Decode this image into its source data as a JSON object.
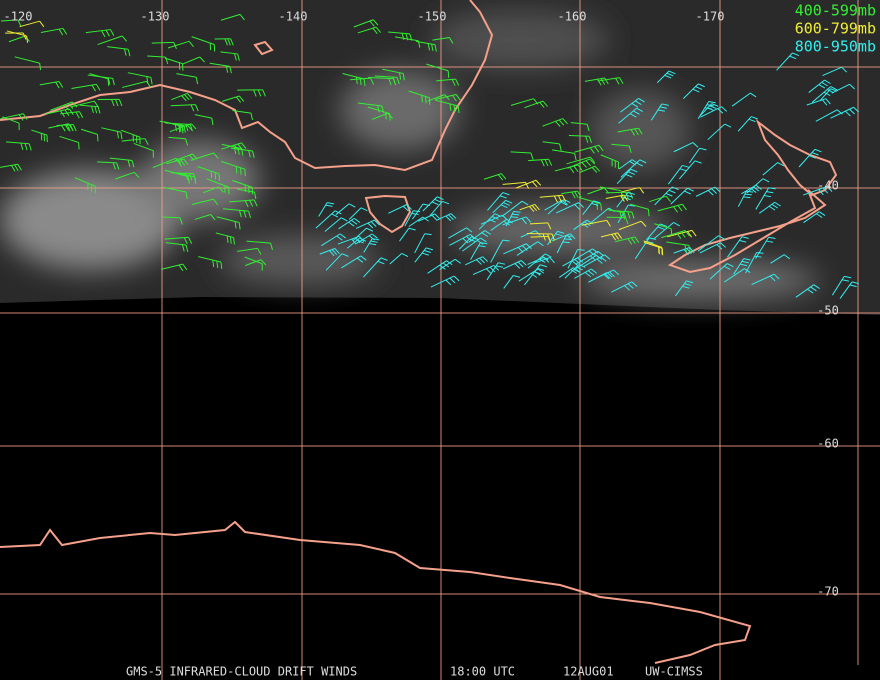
{
  "map": {
    "longitude_labels": [
      "-120",
      "-130",
      "-140",
      "-150",
      "-160",
      "-170"
    ],
    "latitude_labels": [
      "-40",
      "-50",
      "-60",
      "-70"
    ],
    "legend": [
      {
        "label": "400-599mb",
        "color": "#33ee33"
      },
      {
        "label": "600-799mb",
        "color": "#eeee33"
      },
      {
        "label": "800-950mb",
        "color": "#33eeee"
      }
    ],
    "footer": [
      "GMS-5 INFRARED-CLOUD DRIFT WINDS",
      "18:00 UTC",
      "12AUG01",
      "UW-CIMSS"
    ]
  }
}
